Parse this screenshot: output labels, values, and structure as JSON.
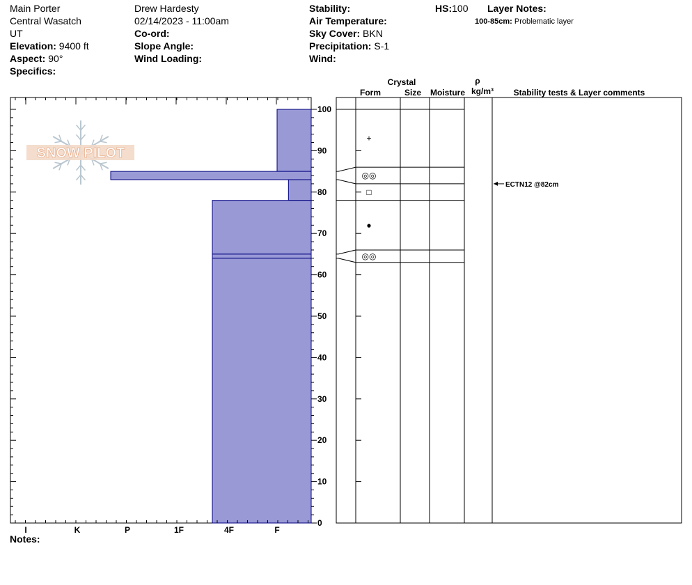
{
  "header": {
    "col1": {
      "location": "Main Porter",
      "range": "Central Wasatch",
      "state": "UT",
      "elevation_label": "Elevation:",
      "elevation_value": "9400 ft",
      "aspect_label": "Aspect:",
      "aspect_value": "90°",
      "specifics_label": "Specifics:"
    },
    "col2": {
      "observer": "Drew Hardesty",
      "datetime": "02/14/2023 - 11:00am",
      "coord_label": "Co-ord:",
      "slope_label": "Slope Angle:",
      "wind_loading_label": "Wind Loading:"
    },
    "col3": {
      "stability_label": "Stability:",
      "air_temp_label": "Air Temperature:",
      "sky_label": "Sky Cover:",
      "sky_value": "BKN",
      "precip_label": "Precipitation:",
      "precip_value": "S-1",
      "wind_label": "Wind:"
    },
    "hs_label": "HS:",
    "hs_value": "100",
    "layer_notes_label": "Layer Notes:",
    "layer_note_range": "100-85cm:",
    "layer_note_text": "Problematic layer"
  },
  "logo_text": "SNOW PILOT",
  "notes_label": "Notes:",
  "colors": {
    "hardness_fill": "#9999d6",
    "hardness_stroke": "#00007f"
  },
  "columns": {
    "crystal": "Crystal",
    "form": "Form",
    "size": "Size",
    "moisture": "Moisture",
    "rho": "ρ",
    "density_unit": "kg/m³",
    "stability": "Stability tests & Layer comments"
  },
  "chart_data": {
    "type": "snow-profile",
    "y_axis": {
      "unit": "cm",
      "range": [
        0,
        100
      ],
      "ticks": [
        0,
        10,
        20,
        30,
        40,
        50,
        60,
        70,
        80,
        90,
        100
      ]
    },
    "x_axis": {
      "categories": [
        "I",
        "K",
        "P",
        "1F",
        "4F",
        "F"
      ]
    },
    "hardness_layers": [
      {
        "top": 100,
        "bottom": 85,
        "hardness": "F"
      },
      {
        "top": 85,
        "bottom": 83,
        "hardness": "P-"
      },
      {
        "top": 83,
        "bottom": 78,
        "hardness": "F+"
      },
      {
        "top": 78,
        "bottom": 65,
        "hardness": "4F-"
      },
      {
        "top": 65,
        "bottom": 64,
        "hardness": "4F-"
      },
      {
        "top": 64,
        "bottom": 0,
        "hardness": "4F-"
      }
    ],
    "stratigraphy_boundaries": [
      100,
      86,
      82,
      78,
      66,
      63
    ],
    "layer_symbols": [
      {
        "height": 93,
        "symbol": "+"
      },
      {
        "height": 84,
        "symbol": "◎◎"
      },
      {
        "height": 80,
        "symbol": "□"
      },
      {
        "height": 72,
        "symbol": "●"
      },
      {
        "height": 64.5,
        "symbol": "◎◎"
      }
    ],
    "stability_tests": [
      {
        "height": 82,
        "label": "ECTN12 @82cm"
      }
    ]
  }
}
